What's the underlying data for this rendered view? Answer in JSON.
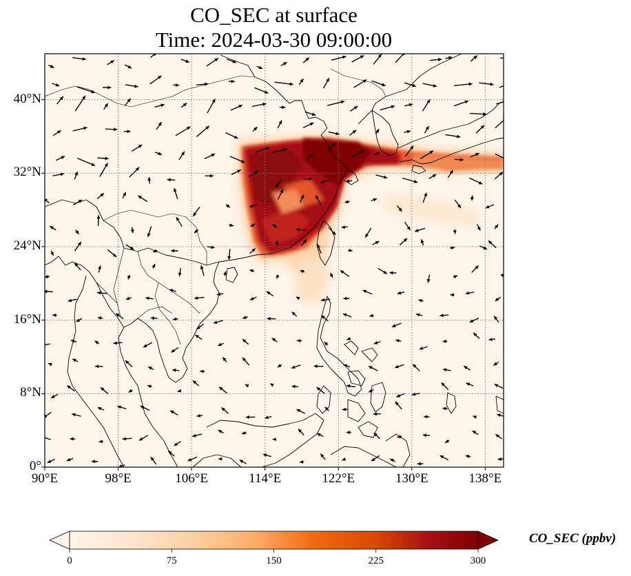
{
  "title": {
    "line1": "CO_SEC at surface",
    "line2": "Time: 2024-03-30 09:00:00"
  },
  "map": {
    "extent": {
      "lon_min": 90,
      "lon_max": 140,
      "lat_min": 0,
      "lat_max": 45
    },
    "lat_ticks": [
      {
        "value": 0,
        "label": "0°"
      },
      {
        "value": 8,
        "label": "8°N"
      },
      {
        "value": 16,
        "label": "16°N"
      },
      {
        "value": 24,
        "label": "24°N"
      },
      {
        "value": 32,
        "label": "32°N"
      },
      {
        "value": 40,
        "label": "40°N"
      }
    ],
    "lon_ticks": [
      {
        "value": 90,
        "label": "90°E"
      },
      {
        "value": 98,
        "label": "98°E"
      },
      {
        "value": 106,
        "label": "106°E"
      },
      {
        "value": 114,
        "label": "114°E"
      },
      {
        "value": 122,
        "label": "122°E"
      },
      {
        "value": 130,
        "label": "130°E"
      },
      {
        "value": 138,
        "label": "138°E"
      }
    ],
    "gridlines": true,
    "field": "CO_SEC",
    "background_color": "#fff5eb"
  },
  "colorbar": {
    "label": "CO_SEC (ppbv)",
    "min": 0,
    "max": 300,
    "ticks": [
      "0",
      "75",
      "150",
      "225",
      "300"
    ],
    "extend": "both",
    "colors": [
      "#fff5eb",
      "#fee6ce",
      "#fdd0a2",
      "#fdae6b",
      "#f16913",
      "#d94801",
      "#a50f15",
      "#7f0000"
    ]
  }
}
